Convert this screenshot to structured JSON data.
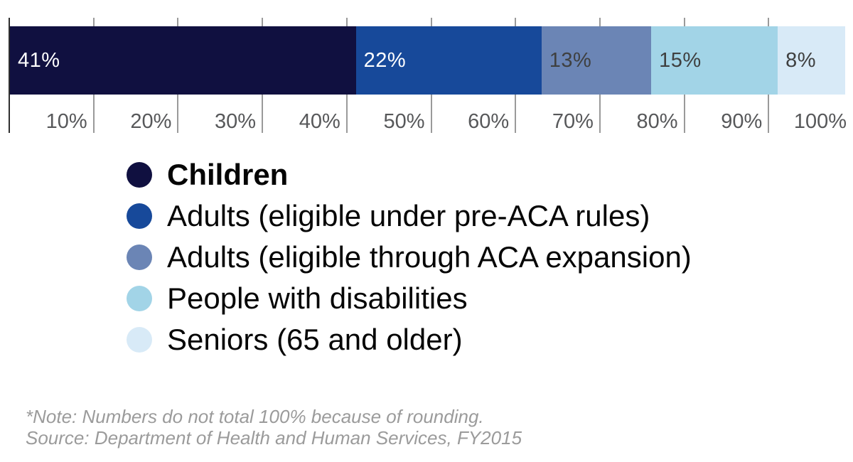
{
  "chart_data": {
    "type": "bar",
    "stacked": true,
    "orientation": "horizontal",
    "title": "",
    "xlabel": "",
    "ylabel": "",
    "xlim": [
      0,
      100
    ],
    "grid": true,
    "legend_position": "bottom-left",
    "series": [
      {
        "name": "Children",
        "value": 41,
        "data_label": "41%",
        "color": "#101040",
        "label_color": "#ffffff"
      },
      {
        "name": "Adults (eligible under pre-ACA rules)",
        "value": 22,
        "data_label": "22%",
        "color": "#17499a",
        "label_color": "#ffffff"
      },
      {
        "name": "Adults (eligible through ACA expansion)",
        "value": 13,
        "data_label": "13%",
        "color": "#6b85b5",
        "label_color": "#3f4040"
      },
      {
        "name": "People with disabilities",
        "value": 15,
        "data_label": "15%",
        "color": "#a2d4e7",
        "label_color": "#3f4040"
      },
      {
        "name": "Seniors (65 and older)",
        "value": 8,
        "data_label": "8%",
        "color": "#d8eaf7",
        "label_color": "#3f4040"
      }
    ],
    "x_ticks": [
      {
        "value": 10,
        "label": "10%"
      },
      {
        "value": 20,
        "label": "20%"
      },
      {
        "value": 30,
        "label": "30%"
      },
      {
        "value": 40,
        "label": "40%"
      },
      {
        "value": 50,
        "label": "50%"
      },
      {
        "value": 60,
        "label": "60%"
      },
      {
        "value": 70,
        "label": "70%"
      },
      {
        "value": 80,
        "label": "80%"
      },
      {
        "value": 90,
        "label": "90%"
      },
      {
        "value": 100,
        "label": "100%"
      }
    ]
  },
  "legend": {
    "items": [
      {
        "label": "Children",
        "color": "#101040",
        "bold": true
      },
      {
        "label": "Adults (eligible under pre-ACA rules)",
        "color": "#17499a",
        "bold": false
      },
      {
        "label": "Adults (eligible through ACA expansion)",
        "color": "#6b85b5",
        "bold": false
      },
      {
        "label": "People with disabilities",
        "color": "#a2d4e7",
        "bold": false
      },
      {
        "label": "Seniors (65 and older)",
        "color": "#d8eaf7",
        "bold": false
      }
    ]
  },
  "notes": {
    "note_line": "*Note: Numbers do not total 100% because of rounding.",
    "source_line": "Source: Department of Health and Human Services, FY2015"
  }
}
